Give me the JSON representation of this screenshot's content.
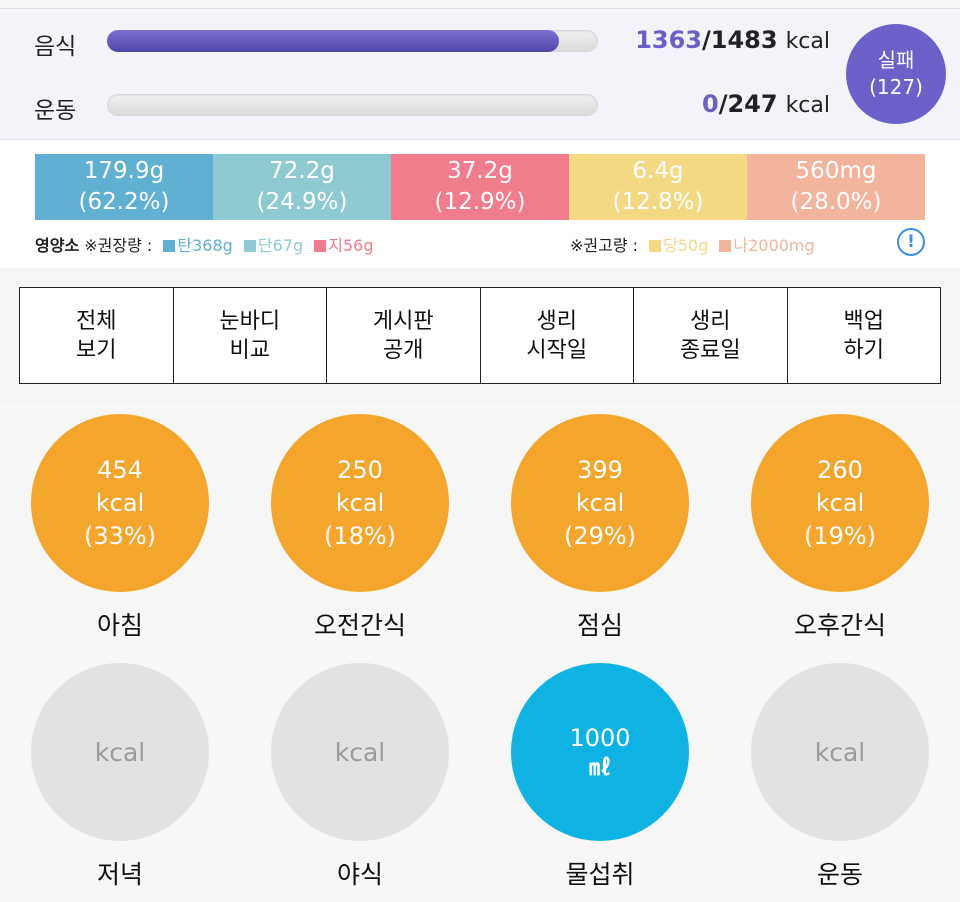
{
  "calories": {
    "food": {
      "label": "음식",
      "current": "1363",
      "goal": "/1483",
      "unit": "kcal",
      "progress": 0.92
    },
    "exercise": {
      "label": "운동",
      "current": "0",
      "goal": "/247",
      "unit": "kcal",
      "progress": 0.0
    },
    "status_badge": {
      "line1": "실패",
      "line2": "(127)"
    }
  },
  "nutrients": {
    "segments": [
      {
        "value": "179.9g",
        "percent": "(62.2%)",
        "color": "#5fb0d3"
      },
      {
        "value": "72.2g",
        "percent": "(24.9%)",
        "color": "#8ecbd0"
      },
      {
        "value": "37.2g",
        "percent": "(12.9%)",
        "color": "#f07c8c"
      },
      {
        "value": "6.4g",
        "percent": "(12.8%)",
        "color": "#f5d884"
      },
      {
        "value": "560mg",
        "percent": "(28.0%)",
        "color": "#f2b59b"
      }
    ],
    "legend_left": {
      "title": "영양소",
      "recommend": "※권장량 :",
      "items": [
        {
          "label": "탄368g",
          "color": "#5fb0d3"
        },
        {
          "label": "단67g",
          "color": "#8ecbd0"
        },
        {
          "label": "지56g",
          "color": "#f07c8c"
        }
      ]
    },
    "legend_right": {
      "recommend": "※권고량 :",
      "items": [
        {
          "label": "당50g",
          "color": "#f5d884"
        },
        {
          "label": "나2000mg",
          "color": "#f2b59b"
        }
      ]
    },
    "info_icon": "!"
  },
  "menu": [
    {
      "line1": "전체",
      "line2": "보기"
    },
    {
      "line1": "눈바디",
      "line2": "비교"
    },
    {
      "line1": "게시판",
      "line2": "공개"
    },
    {
      "line1": "생리",
      "line2": "시작일"
    },
    {
      "line1": "생리",
      "line2": "종료일"
    },
    {
      "line1": "백업",
      "line2": "하기"
    }
  ],
  "meals": [
    {
      "value": "454",
      "unit": "kcal",
      "percent": "(33%)",
      "label": "아침"
    },
    {
      "value": "250",
      "unit": "kcal",
      "percent": "(18%)",
      "label": "오전간식"
    },
    {
      "value": "399",
      "unit": "kcal",
      "percent": "(29%)",
      "label": "점심"
    },
    {
      "value": "260",
      "unit": "kcal",
      "percent": "(19%)",
      "label": "오후간식"
    },
    {
      "unit": "kcal",
      "label": "저녁"
    },
    {
      "unit": "kcal",
      "label": "야식"
    },
    {
      "value": "1000",
      "unit": "㎖",
      "label": "물섭취"
    },
    {
      "unit": "kcal",
      "label": "운동"
    }
  ],
  "colors": {
    "accent": "#6b61c9",
    "meal_active": "#f4a62c",
    "water": "#0fb3e3",
    "empty": "#e2e2e2"
  }
}
